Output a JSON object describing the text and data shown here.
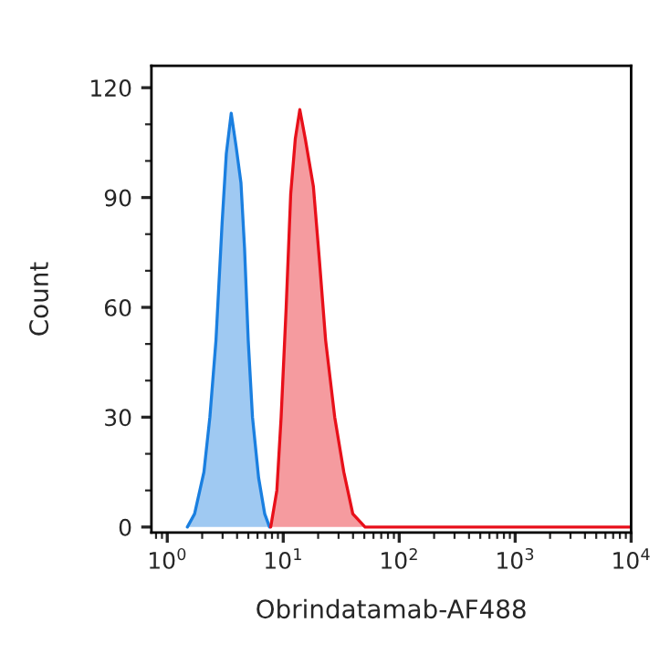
{
  "chart_data": {
    "type": "area",
    "xlabel": "Obrindatamab-AF488",
    "ylabel": "Count",
    "log": "x",
    "grid": false,
    "xlim": [
      0.73,
      10000
    ],
    "ylim": [
      -1.5,
      126
    ],
    "xticks": [
      {
        "value": 1,
        "label": "10$^{0}$"
      },
      {
        "value": 10,
        "label": "10$^{1}$"
      },
      {
        "value": 100,
        "label": "10$^{2}$"
      },
      {
        "value": 1000,
        "label": "10$^{3}$"
      },
      {
        "value": 10000,
        "label": "10$^{4}$"
      }
    ],
    "yticks": [
      0,
      30,
      60,
      90,
      120
    ],
    "series": [
      {
        "color": "#1a7fe0",
        "x": [
          1.49,
          1.72,
          2.07,
          2.33,
          2.63,
          2.97,
          3.23,
          3.56,
          3.92,
          4.32,
          4.64,
          4.99,
          5.43,
          6.13,
          6.92,
          7.62
        ],
        "values": [
          0,
          3.6,
          15,
          30,
          51,
          83,
          102,
          113,
          104,
          94,
          76,
          51,
          30,
          13.5,
          3.6,
          0
        ]
      },
      {
        "color": "#e8101a",
        "x": [
          7.8,
          8.81,
          9.59,
          10.6,
          11.6,
          12.7,
          13.9,
          15.5,
          18.2,
          20.5,
          23.2,
          27.8,
          33.3,
          39.8,
          50.8,
          10000
        ],
        "values": [
          0,
          10,
          30,
          60,
          91,
          106,
          114,
          106,
          93,
          73,
          51,
          30,
          15,
          3.6,
          0,
          0
        ]
      }
    ]
  }
}
